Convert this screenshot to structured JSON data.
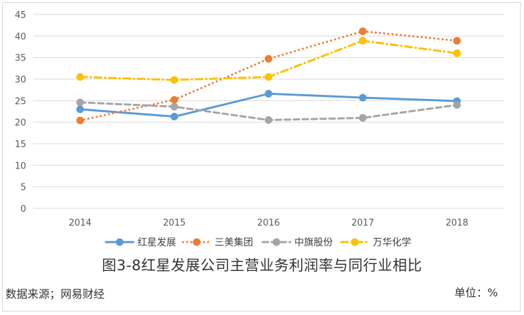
{
  "chart_data": {
    "type": "line",
    "categories": [
      "2014",
      "2015",
      "2016",
      "2017",
      "2018"
    ],
    "ylim": [
      0,
      45
    ],
    "yticks": [
      0,
      5,
      10,
      15,
      20,
      25,
      30,
      35,
      40,
      45
    ],
    "grid": true,
    "legend_position": "bottom",
    "series": [
      {
        "name": "红星发展",
        "values": [
          23.0,
          21.3,
          26.6,
          25.7,
          24.9
        ],
        "color": "#5b9bd5",
        "style": "solid"
      },
      {
        "name": "三美集团",
        "values": [
          20.4,
          25.2,
          34.7,
          41.1,
          38.9
        ],
        "color": "#ed7d31",
        "style": "dotted"
      },
      {
        "name": "中旗股份",
        "values": [
          24.6,
          23.6,
          20.5,
          21.0,
          24.0
        ],
        "color": "#a5a5a5",
        "style": "dashed"
      },
      {
        "name": "万华化学",
        "values": [
          30.5,
          29.8,
          30.5,
          38.9,
          36.0
        ],
        "color": "#ffc000",
        "style": "dashdot"
      }
    ]
  },
  "caption": "图3-8红星发展公司主营业务利润率与同行业相比",
  "source": "数据来源；网易财经",
  "unit": "单位：%"
}
